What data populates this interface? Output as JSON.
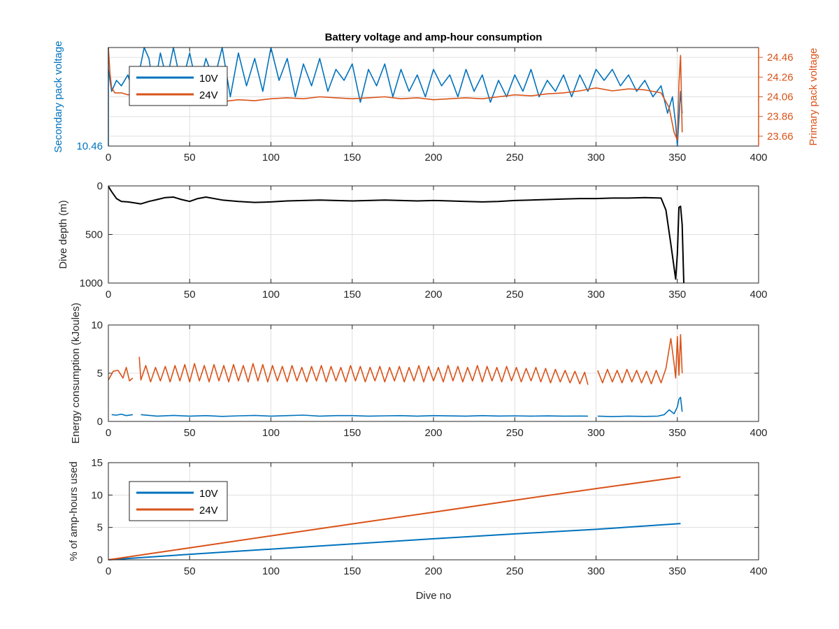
{
  "figure": {
    "title": "Battery voltage and amp-hour consumption",
    "xlabel": "Dive no"
  },
  "colors": {
    "v10": "#0072BD",
    "v24": "#D95319",
    "depth": "#000000",
    "grid": "#DFDFDF",
    "axis": "#262626"
  },
  "chart_data": [
    {
      "type": "line",
      "title": "Battery voltage and amp-hour consumption",
      "xlabel": "",
      "ylabel_left": "Secondary pack voltage",
      "ylabel_right": "Primary pack voltage",
      "xlim": [
        0,
        400
      ],
      "xticks": [
        "0",
        "50",
        "100",
        "150",
        "200",
        "250",
        "300",
        "350",
        "400"
      ],
      "ylim_left": [
        10.46,
        10.64
      ],
      "yticks_left": [
        "10.46"
      ],
      "ylim_right": [
        23.56,
        24.56
      ],
      "yticks_right": [
        "24.46",
        "24.26",
        "24.06",
        "23.86",
        "23.66"
      ],
      "grid": true,
      "legend": {
        "position": "top-left",
        "entries": [
          "10V",
          "24V"
        ]
      },
      "series": [
        {
          "name": "10V",
          "axis": "left",
          "x": [
            0,
            2,
            5,
            8,
            12,
            16,
            20,
            22,
            25,
            28,
            32,
            36,
            40,
            45,
            50,
            55,
            60,
            65,
            70,
            75,
            80,
            85,
            90,
            95,
            100,
            105,
            110,
            115,
            120,
            125,
            130,
            135,
            140,
            145,
            150,
            155,
            160,
            165,
            170,
            175,
            180,
            185,
            190,
            195,
            200,
            205,
            210,
            215,
            220,
            225,
            230,
            235,
            240,
            245,
            250,
            255,
            260,
            265,
            270,
            275,
            280,
            285,
            290,
            295,
            300,
            305,
            310,
            315,
            320,
            325,
            330,
            335,
            340,
            344,
            347,
            349,
            350,
            352,
            353
          ],
          "values": [
            10.6,
            10.56,
            10.58,
            10.57,
            10.59,
            10.55,
            10.61,
            10.64,
            10.62,
            10.56,
            10.63,
            10.58,
            10.64,
            10.57,
            10.63,
            10.56,
            10.62,
            10.58,
            10.64,
            10.55,
            10.63,
            10.57,
            10.62,
            10.56,
            10.64,
            10.58,
            10.62,
            10.55,
            10.61,
            10.57,
            10.62,
            10.56,
            10.6,
            10.58,
            10.61,
            10.54,
            10.6,
            10.57,
            10.61,
            10.55,
            10.6,
            10.56,
            10.59,
            10.55,
            10.6,
            10.57,
            10.59,
            10.55,
            10.6,
            10.56,
            10.59,
            10.54,
            10.58,
            10.55,
            10.59,
            10.56,
            10.6,
            10.55,
            10.58,
            10.56,
            10.59,
            10.55,
            10.59,
            10.56,
            10.6,
            10.58,
            10.6,
            10.57,
            10.59,
            10.56,
            10.58,
            10.55,
            10.57,
            10.52,
            10.55,
            10.5,
            10.46,
            10.56,
            10.52
          ]
        },
        {
          "name": "24V",
          "axis": "right",
          "x": [
            0,
            1,
            2,
            4,
            8,
            12,
            16,
            20,
            25,
            30,
            35,
            40,
            45,
            50,
            55,
            60,
            65,
            70,
            75,
            80,
            90,
            100,
            110,
            120,
            130,
            140,
            150,
            160,
            170,
            180,
            190,
            200,
            210,
            220,
            230,
            240,
            250,
            260,
            270,
            280,
            290,
            300,
            310,
            320,
            330,
            340,
            345,
            348,
            350,
            351,
            352,
            353
          ],
          "values": [
            24.56,
            24.3,
            24.15,
            24.1,
            24.1,
            24.08,
            24.09,
            24.06,
            24.08,
            24.07,
            24.05,
            24.06,
            24.04,
            24.05,
            24.03,
            24.04,
            24.02,
            24.01,
            24.02,
            24.03,
            24.02,
            24.04,
            24.05,
            24.04,
            24.06,
            24.05,
            24.04,
            24.05,
            24.06,
            24.04,
            24.05,
            24.03,
            24.04,
            24.05,
            24.04,
            24.06,
            24.08,
            24.07,
            24.09,
            24.1,
            24.12,
            24.15,
            24.12,
            24.14,
            24.13,
            24.1,
            23.95,
            23.7,
            23.62,
            24.2,
            24.48,
            23.7
          ]
        }
      ]
    },
    {
      "type": "line",
      "ylabel": "Dive depth (m)",
      "xlim": [
        0,
        400
      ],
      "xticks": [
        "0",
        "50",
        "100",
        "150",
        "200",
        "250",
        "300",
        "350",
        "400"
      ],
      "ylim": [
        0,
        1000
      ],
      "y_reversed": true,
      "yticks": [
        "0",
        "500",
        "1000"
      ],
      "grid": true,
      "series": [
        {
          "x": [
            0,
            2,
            5,
            8,
            12,
            16,
            20,
            25,
            30,
            35,
            40,
            45,
            50,
            55,
            60,
            70,
            80,
            90,
            100,
            110,
            120,
            130,
            140,
            150,
            160,
            170,
            180,
            190,
            200,
            210,
            220,
            230,
            240,
            250,
            260,
            270,
            280,
            290,
            300,
            310,
            320,
            330,
            340,
            343,
            346,
            349,
            350,
            351,
            352,
            353,
            354
          ],
          "values": [
            5,
            60,
            130,
            160,
            165,
            175,
            185,
            160,
            140,
            120,
            115,
            140,
            160,
            130,
            115,
            145,
            160,
            170,
            165,
            155,
            150,
            145,
            150,
            155,
            150,
            145,
            150,
            155,
            150,
            155,
            160,
            165,
            160,
            150,
            145,
            140,
            135,
            130,
            130,
            125,
            125,
            120,
            125,
            250,
            600,
            960,
            700,
            220,
            210,
            400,
            1000
          ]
        }
      ]
    },
    {
      "type": "line",
      "ylabel": "Energy consumption (kJoules)",
      "xlim": [
        0,
        400
      ],
      "xticks": [
        "0",
        "50",
        "100",
        "150",
        "200",
        "250",
        "300",
        "350",
        "400"
      ],
      "ylim": [
        0,
        10
      ],
      "yticks": [
        "0",
        "5",
        "10"
      ],
      "grid": true,
      "series": [
        {
          "name": "24V",
          "segments": [
            {
              "x": [
                0,
                3,
                6,
                9,
                11,
                13,
                15
              ],
              "values": [
                4.3,
                5.2,
                5.3,
                4.5,
                5.6,
                4.2,
                4.5
              ]
            },
            {
              "x": [
                19,
                20,
                23,
                26,
                29,
                32,
                35,
                38,
                41,
                44,
                47,
                50,
                53,
                56,
                59,
                62,
                65,
                68,
                71,
                74,
                77,
                80,
                83,
                86,
                89,
                92,
                95,
                98,
                101,
                104,
                107,
                110,
                113,
                116,
                119,
                122,
                125,
                128,
                131,
                134,
                137,
                140,
                143,
                146,
                149,
                152,
                155,
                158,
                161,
                164,
                167,
                170,
                173,
                176,
                179,
                182,
                185,
                188,
                191,
                194,
                197,
                200,
                203,
                206,
                209,
                212,
                215,
                218,
                221,
                224,
                227,
                230,
                233,
                236,
                239,
                242,
                245,
                248,
                251,
                254,
                257,
                260,
                263,
                266,
                269,
                272,
                275,
                278,
                281,
                284,
                287,
                290,
                293,
                295
              ],
              "values": [
                6.7,
                4.3,
                5.8,
                4.1,
                5.6,
                4.2,
                5.7,
                4.1,
                5.8,
                4.2,
                5.9,
                4.1,
                6.0,
                4.2,
                5.8,
                4.1,
                5.9,
                4.2,
                5.8,
                4.1,
                5.9,
                4.2,
                5.8,
                4.1,
                6.0,
                4.2,
                5.9,
                4.1,
                5.8,
                4.2,
                5.7,
                4.1,
                5.8,
                4.2,
                5.6,
                4.1,
                5.7,
                4.2,
                5.8,
                4.1,
                5.7,
                4.2,
                5.6,
                4.1,
                5.8,
                4.2,
                5.7,
                4.1,
                5.6,
                4.2,
                5.7,
                4.1,
                5.6,
                4.2,
                5.7,
                4.1,
                5.6,
                4.2,
                5.8,
                4.1,
                5.7,
                4.2,
                5.6,
                4.1,
                5.8,
                4.2,
                5.7,
                4.1,
                5.6,
                4.2,
                5.8,
                4.1,
                5.7,
                4.2,
                5.6,
                4.1,
                5.7,
                4.2,
                5.6,
                4.1,
                5.5,
                4.2,
                5.6,
                4.1,
                5.5,
                4.0,
                5.4,
                4.1,
                5.3,
                4.0,
                5.2,
                3.9,
                5.1,
                3.8
              ]
            },
            {
              "x": [
                301,
                304,
                307,
                310,
                313,
                316,
                319,
                322,
                325,
                328,
                331,
                334,
                337,
                340,
                343,
                346,
                348,
                349,
                350,
                351,
                352,
                353
              ],
              "values": [
                5.3,
                4.0,
                5.4,
                4.1,
                5.3,
                4.0,
                5.4,
                4.1,
                5.3,
                4.0,
                5.2,
                3.9,
                5.3,
                4.0,
                5.5,
                8.6,
                6.0,
                4.5,
                8.8,
                4.8,
                9.0,
                5.0
              ]
            }
          ]
        },
        {
          "name": "10V",
          "segments": [
            {
              "x": [
                2,
                5,
                8,
                11,
                15
              ],
              "values": [
                0.7,
                0.65,
                0.75,
                0.6,
                0.7
              ]
            },
            {
              "x": [
                20,
                30,
                40,
                50,
                60,
                70,
                80,
                90,
                100,
                110,
                120,
                130,
                140,
                150,
                160,
                170,
                180,
                190,
                200,
                210,
                220,
                230,
                240,
                250,
                260,
                270,
                280,
                290,
                295
              ],
              "values": [
                0.7,
                0.55,
                0.62,
                0.55,
                0.6,
                0.52,
                0.58,
                0.62,
                0.55,
                0.6,
                0.65,
                0.55,
                0.6,
                0.6,
                0.55,
                0.58,
                0.6,
                0.55,
                0.6,
                0.57,
                0.55,
                0.6,
                0.56,
                0.58,
                0.55,
                0.57,
                0.55,
                0.56,
                0.55
              ]
            },
            {
              "x": [
                301,
                310,
                320,
                330,
                338,
                342,
                345,
                348,
                350,
                351,
                352,
                353
              ],
              "values": [
                0.55,
                0.5,
                0.55,
                0.52,
                0.55,
                0.7,
                1.2,
                0.8,
                1.5,
                2.3,
                2.5,
                1.0
              ]
            }
          ]
        }
      ]
    },
    {
      "type": "line",
      "ylabel": "% of amp-hours used",
      "xlabel": "Dive no",
      "xlim": [
        0,
        400
      ],
      "xticks": [
        "0",
        "50",
        "100",
        "150",
        "200",
        "250",
        "300",
        "350",
        "400"
      ],
      "ylim": [
        0,
        15
      ],
      "yticks": [
        "0",
        "5",
        "10",
        "15"
      ],
      "grid": true,
      "legend": {
        "position": "bottom-left",
        "entries": [
          "10V",
          "24V"
        ]
      },
      "series": [
        {
          "name": "10V",
          "x": [
            0,
            50,
            100,
            150,
            200,
            250,
            300,
            352
          ],
          "values": [
            0,
            0.85,
            1.65,
            2.45,
            3.25,
            4.0,
            4.7,
            5.6
          ]
        },
        {
          "name": "24V",
          "x": [
            0,
            50,
            100,
            150,
            200,
            250,
            300,
            352
          ],
          "values": [
            0,
            1.85,
            3.7,
            5.55,
            7.35,
            9.2,
            11.0,
            12.8
          ]
        }
      ]
    }
  ]
}
